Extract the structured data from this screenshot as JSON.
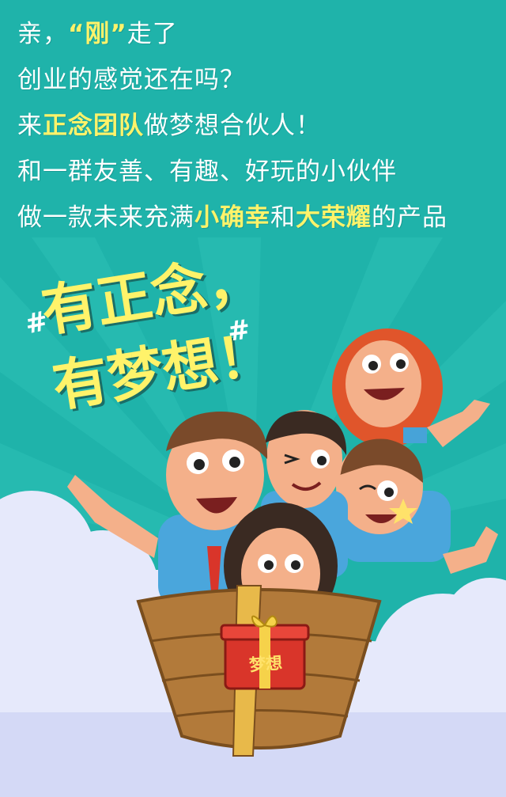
{
  "intro": {
    "line1": {
      "before": "亲，",
      "highlight": "“刚”",
      "after": "走了"
    },
    "line2": "创业的感觉还在吗？",
    "line3": {
      "before": "来",
      "highlight": "正念团队",
      "after": "做梦想合伙人！"
    },
    "line4": "和一群友善、有趣、好玩的小伙伴",
    "line5": {
      "before": "做一款未来充满",
      "highlight1": "小确幸",
      "middle": "和",
      "highlight2": "大荣耀",
      "after": "的产品"
    }
  },
  "slogan": {
    "line1": "有正念，",
    "line2": "有梦想！",
    "hash_symbol": "#"
  },
  "illustration": {
    "gift_label": "梦想"
  },
  "colors": {
    "background": "#1fb3aa",
    "highlight": "#fff36a",
    "cloud": "#e6e9fb",
    "boat": "#b27a3a",
    "gift": "#d9352a"
  }
}
